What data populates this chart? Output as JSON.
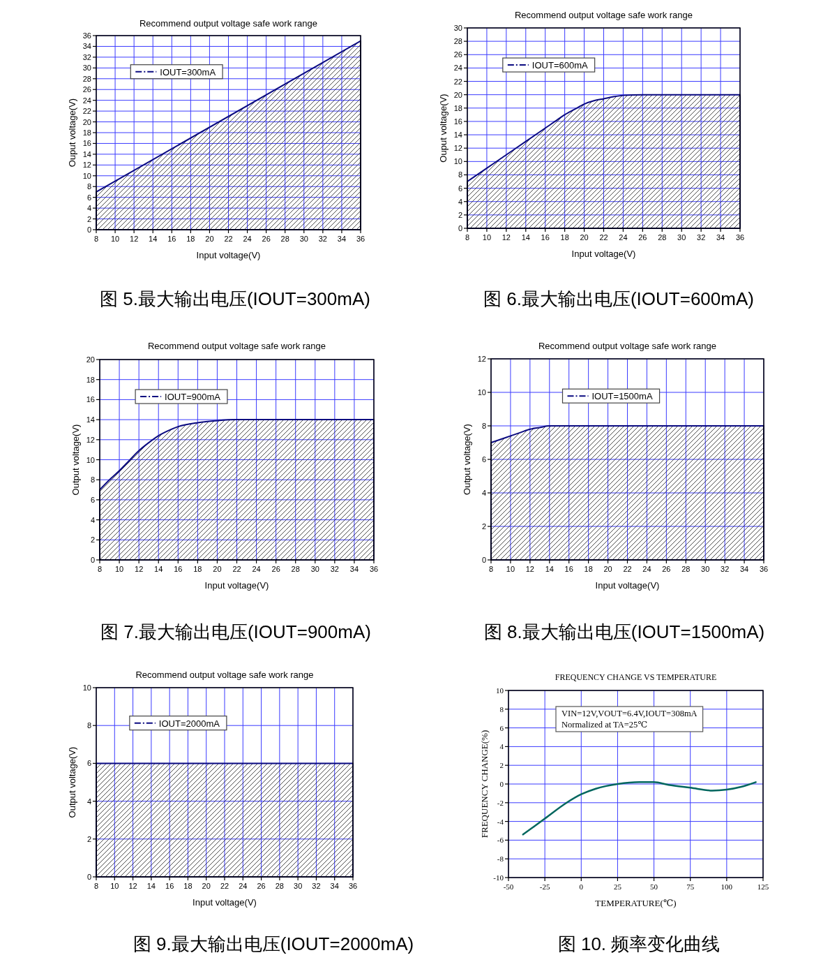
{
  "chart_data": [
    {
      "type": "area",
      "title": "Recommend output voltage safe work range",
      "xlabel": "Input voltage(V)",
      "ylabel": "Ouput voltage(V)",
      "x": [
        8,
        36
      ],
      "series": [
        {
          "name": "IOUT=300mA",
          "color": "#0a0a80",
          "values": [
            7,
            35
          ]
        }
      ],
      "xlim": [
        8,
        36
      ],
      "xticks": [
        8,
        10,
        12,
        14,
        16,
        18,
        20,
        22,
        24,
        26,
        28,
        30,
        32,
        34,
        36
      ],
      "ylim": [
        0,
        36
      ],
      "yticks": [
        0,
        2,
        4,
        6,
        8,
        10,
        12,
        14,
        16,
        18,
        20,
        22,
        24,
        26,
        28,
        30,
        32,
        34,
        36
      ],
      "grid": true,
      "legend": "top left",
      "annotations": [
        "图 5.最大输出电压(IOUT=300mA)"
      ]
    },
    {
      "type": "area",
      "title": "Recommend output voltage safe work range",
      "xlabel": "Input voltage(V)",
      "ylabel": "Ouput voltage(V)",
      "x": [
        8,
        10,
        12,
        14,
        16,
        17,
        18,
        19,
        20,
        21,
        22,
        23,
        24,
        26,
        36
      ],
      "series": [
        {
          "name": "IOUT=600mA",
          "color": "#0a0a80",
          "values": [
            7,
            9,
            11,
            13,
            15,
            16,
            17,
            17.8,
            18.6,
            19.1,
            19.4,
            19.7,
            19.9,
            20,
            20
          ]
        }
      ],
      "xlim": [
        8,
        36
      ],
      "xticks": [
        8,
        10,
        12,
        14,
        16,
        18,
        20,
        22,
        24,
        26,
        28,
        30,
        32,
        34,
        36
      ],
      "ylim": [
        0,
        30
      ],
      "yticks": [
        0,
        2,
        4,
        6,
        8,
        10,
        12,
        14,
        16,
        18,
        20,
        22,
        24,
        26,
        28,
        30
      ],
      "grid": true,
      "legend": "top left",
      "annotations": [
        "图 6.最大输出电压(IOUT=600mA)"
      ]
    },
    {
      "type": "area",
      "title": "Recommend output voltage safe work range",
      "xlabel": "Input voltage(V)",
      "ylabel": "Output voltage(V)",
      "x": [
        8,
        9,
        10,
        11,
        12,
        13,
        14,
        15,
        16,
        18,
        20,
        22,
        36
      ],
      "series": [
        {
          "name": "IOUT=900mA",
          "color": "#0a0a80",
          "values": [
            7,
            8,
            8.9,
            9.9,
            10.9,
            11.7,
            12.4,
            12.9,
            13.3,
            13.7,
            13.9,
            14,
            14
          ]
        }
      ],
      "xlim": [
        8,
        36
      ],
      "xticks": [
        8,
        10,
        12,
        14,
        16,
        18,
        20,
        22,
        24,
        26,
        28,
        30,
        32,
        34,
        36
      ],
      "ylim": [
        0,
        20
      ],
      "yticks": [
        0,
        2,
        4,
        6,
        8,
        10,
        12,
        14,
        16,
        18,
        20
      ],
      "grid": true,
      "legend": "top left",
      "annotations": [
        "图 7.最大输出电压(IOUT=900mA)"
      ]
    },
    {
      "type": "area",
      "title": "Recommend output voltage safe work range",
      "xlabel": "Input voltage(V)",
      "ylabel": "Output voltage(V)",
      "x": [
        8,
        9,
        10,
        11,
        12,
        13,
        14,
        15,
        36
      ],
      "series": [
        {
          "name": "IOUT=1500mA",
          "color": "#0a0a80",
          "values": [
            7,
            7.2,
            7.4,
            7.6,
            7.8,
            7.9,
            8,
            8,
            8
          ]
        }
      ],
      "xlim": [
        8,
        36
      ],
      "xticks": [
        8,
        10,
        12,
        14,
        16,
        18,
        20,
        22,
        24,
        26,
        28,
        30,
        32,
        34,
        36
      ],
      "ylim": [
        0,
        12
      ],
      "yticks": [
        0,
        2,
        4,
        6,
        8,
        10,
        12
      ],
      "grid": true,
      "legend": "top",
      "annotations": [
        "图 8.最大输出电压(IOUT=1500mA)"
      ]
    },
    {
      "type": "area",
      "title": "Recommend output voltage safe work range",
      "xlabel": "Input voltage(V)",
      "ylabel": "Output voltage(V)",
      "x": [
        8,
        36
      ],
      "series": [
        {
          "name": "IOUT=2000mA",
          "color": "#0a0a80",
          "values": [
            6,
            6
          ]
        }
      ],
      "xlim": [
        8,
        36
      ],
      "xticks": [
        8,
        10,
        12,
        14,
        16,
        18,
        20,
        22,
        24,
        26,
        28,
        30,
        32,
        34,
        36
      ],
      "ylim": [
        0,
        10
      ],
      "yticks": [
        0,
        2,
        4,
        6,
        8,
        10
      ],
      "grid": true,
      "legend": "top left",
      "annotations": [
        "图 9.最大输出电压(IOUT=2000mA)"
      ]
    },
    {
      "type": "line",
      "title": "FREQUENCY CHANGE VS TEMPERATURE",
      "xlabel": "TEMPERATURE(℃)",
      "ylabel": "FREQUENCY CHANGE(%)",
      "x": [
        -40,
        -25,
        -10,
        0,
        10,
        25,
        40,
        50,
        60,
        75,
        90,
        100,
        110,
        120
      ],
      "series": [
        {
          "color": "#00665e",
          "values": [
            -5.4,
            -3.7,
            -2,
            -1.1,
            -0.5,
            0,
            0.2,
            0.2,
            -0.1,
            -0.4,
            -0.7,
            -0.6,
            -0.3,
            0.2
          ]
        }
      ],
      "xlim": [
        -50,
        125
      ],
      "xticks": [
        -50,
        -25,
        0,
        25,
        50,
        75,
        100,
        125
      ],
      "ylim": [
        -10,
        10
      ],
      "yticks": [
        -10,
        -8,
        -6,
        -4,
        -2,
        0,
        2,
        4,
        6,
        8,
        10
      ],
      "grid": true,
      "annotations": [
        "VIN=12V,VOUT=6.4V,IOUT=308mA",
        "Normalized at TA=25℃",
        "图 10. 频率变化曲线"
      ]
    }
  ]
}
